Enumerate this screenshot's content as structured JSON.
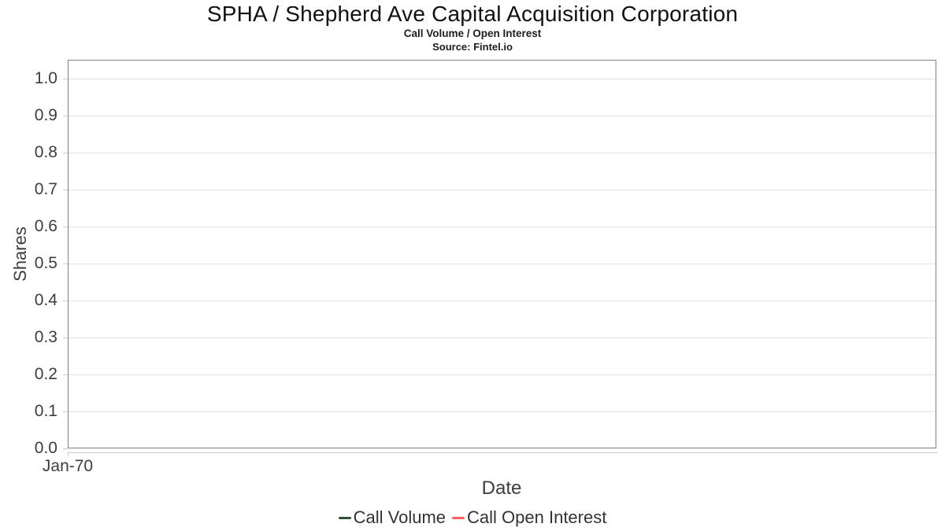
{
  "chart_data": {
    "type": "line",
    "title": "SPHA / Shepherd Ave Capital Acquisition Corporation",
    "subtitle": "Call Volume / Open Interest",
    "source": "Source: Fintel.io",
    "xlabel": "Date",
    "ylabel": "Shares",
    "xticks": [
      "Jan-70"
    ],
    "yticks": [
      "0.0",
      "0.1",
      "0.2",
      "0.3",
      "0.4",
      "0.5",
      "0.6",
      "0.7",
      "0.8",
      "0.9",
      "1.0"
    ],
    "ylim": [
      0,
      1.05
    ],
    "grid": true,
    "legend_position": "bottom",
    "series": [
      {
        "name": "Call Volume",
        "color": "#2e5339",
        "x": [],
        "values": []
      },
      {
        "name": "Call Open Interest",
        "color": "#f96060",
        "x": [],
        "values": []
      }
    ]
  },
  "colors": {
    "grid": "#e2e2e2",
    "border": "#808080",
    "tick": "#cfcfcf",
    "axis_line": "#c9c9c9",
    "text": "#3d3d3d",
    "title": "#111111",
    "legend_text": "#333333"
  }
}
